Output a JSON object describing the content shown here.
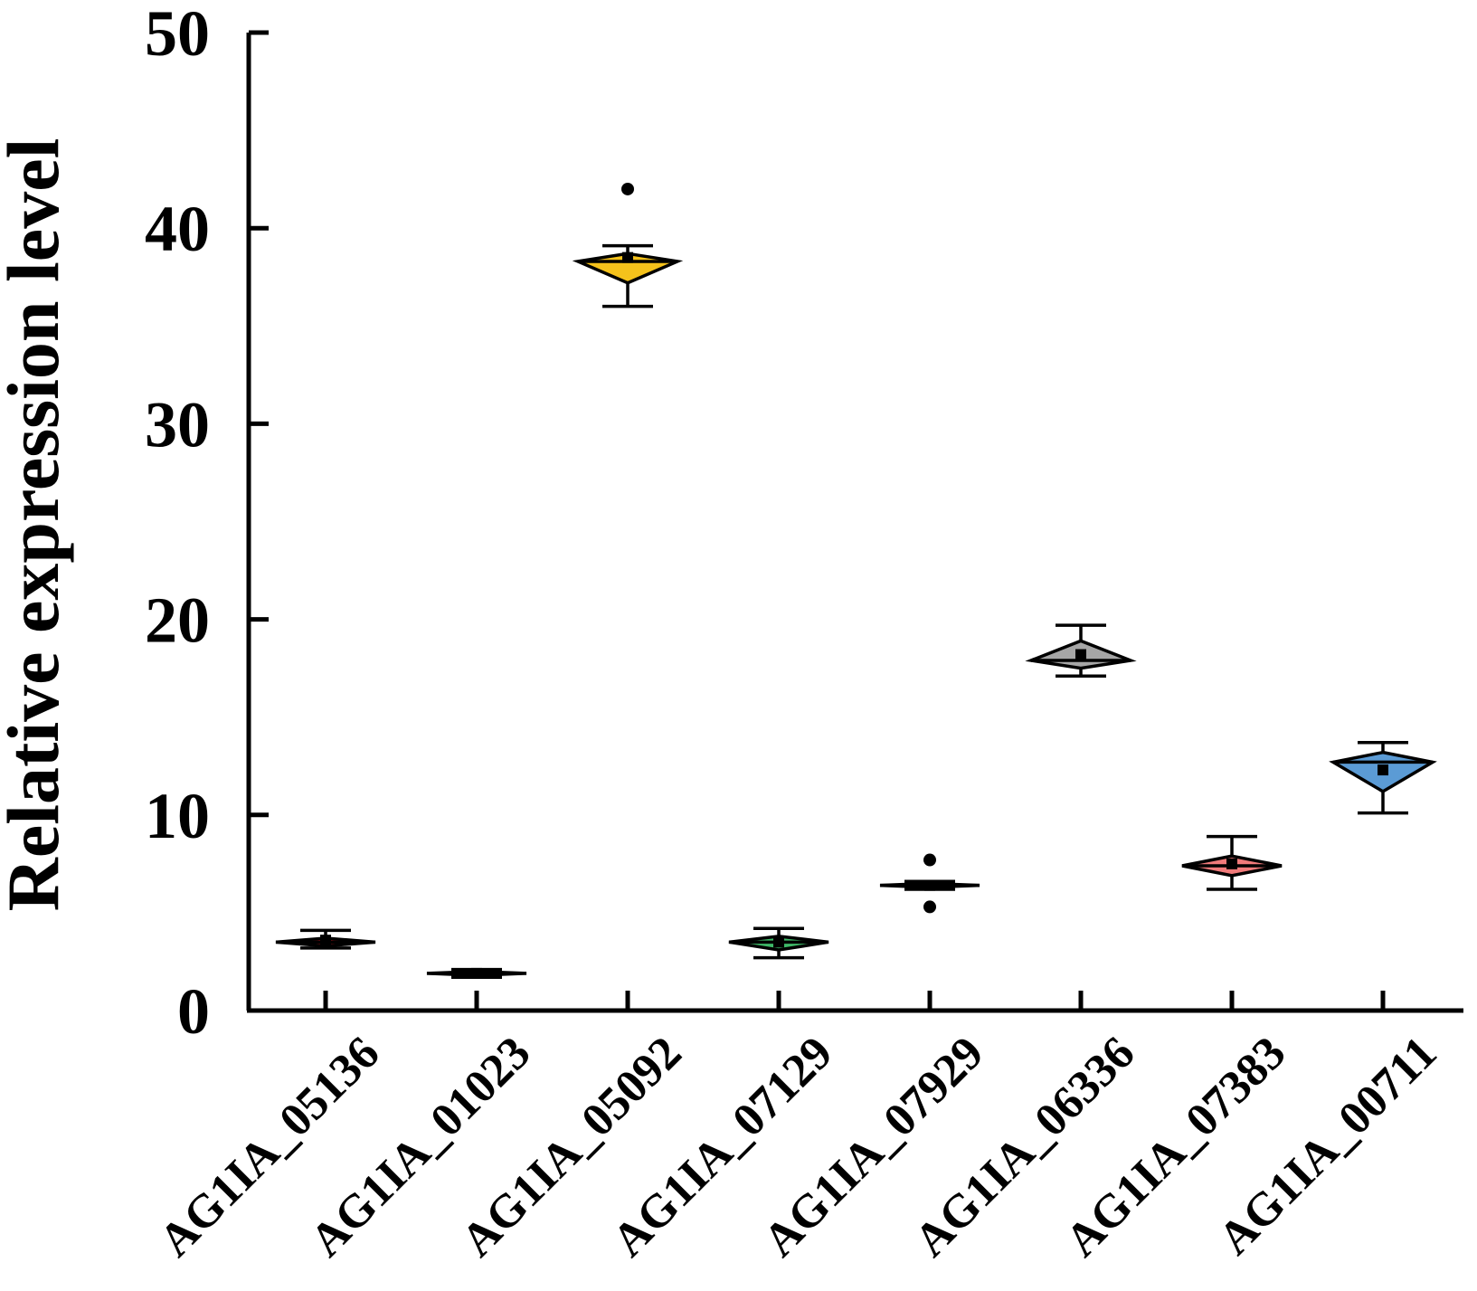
{
  "chart_data": {
    "type": "boxplot",
    "title": "",
    "xlabel": "",
    "ylabel": "Relative expression level",
    "ylim": [
      0,
      50
    ],
    "yticks": [
      0,
      10,
      20,
      30,
      40,
      50
    ],
    "grid": false,
    "legend": "none",
    "categories": [
      "AG1IA_05136",
      "AG1IA_01023",
      "AG1IA_05092",
      "AG1IA_07129",
      "AG1IA_07929",
      "AG1IA_06336",
      "AG1IA_07383",
      "AG1IA_00711"
    ],
    "boxes": [
      {
        "category": "AG1IA_05136",
        "color": "#e8202a",
        "min": 3.2,
        "q1": 3.3,
        "median": 3.5,
        "q3": 3.7,
        "max": 4.1,
        "mean": 3.6,
        "outliers": []
      },
      {
        "category": "AG1IA_01023",
        "color": "#e8e8e8",
        "min": 1.7,
        "q1": 1.8,
        "median": 1.9,
        "q3": 2.0,
        "max": 2.1,
        "mean": 1.9,
        "outliers": []
      },
      {
        "category": "AG1IA_05092",
        "color": "#f5c21b",
        "min": 36.0,
        "q1": 37.2,
        "median": 38.3,
        "q3": 38.7,
        "max": 39.1,
        "mean": 38.5,
        "outliers": [
          42.0
        ]
      },
      {
        "category": "AG1IA_07129",
        "color": "#3fb968",
        "min": 2.7,
        "q1": 3.1,
        "median": 3.5,
        "q3": 3.8,
        "max": 4.2,
        "mean": 3.5,
        "outliers": []
      },
      {
        "category": "AG1IA_07929",
        "color": "#e8e8e8",
        "min": 6.2,
        "q1": 6.3,
        "median": 6.4,
        "q3": 6.5,
        "max": 6.6,
        "mean": 6.4,
        "outliers": [
          7.7,
          5.3
        ]
      },
      {
        "category": "AG1IA_06336",
        "color": "#a6a6a6",
        "min": 17.1,
        "q1": 17.5,
        "median": 17.9,
        "q3": 18.9,
        "max": 19.7,
        "mean": 18.2,
        "outliers": []
      },
      {
        "category": "AG1IA_07383",
        "color": "#f07a7a",
        "min": 6.2,
        "q1": 6.9,
        "median": 7.4,
        "q3": 7.9,
        "max": 8.9,
        "mean": 7.5,
        "outliers": []
      },
      {
        "category": "AG1IA_00711",
        "color": "#5b9bd5",
        "min": 10.1,
        "q1": 11.2,
        "median": 12.7,
        "q3": 13.2,
        "max": 13.7,
        "mean": 12.3,
        "outliers": []
      }
    ]
  }
}
